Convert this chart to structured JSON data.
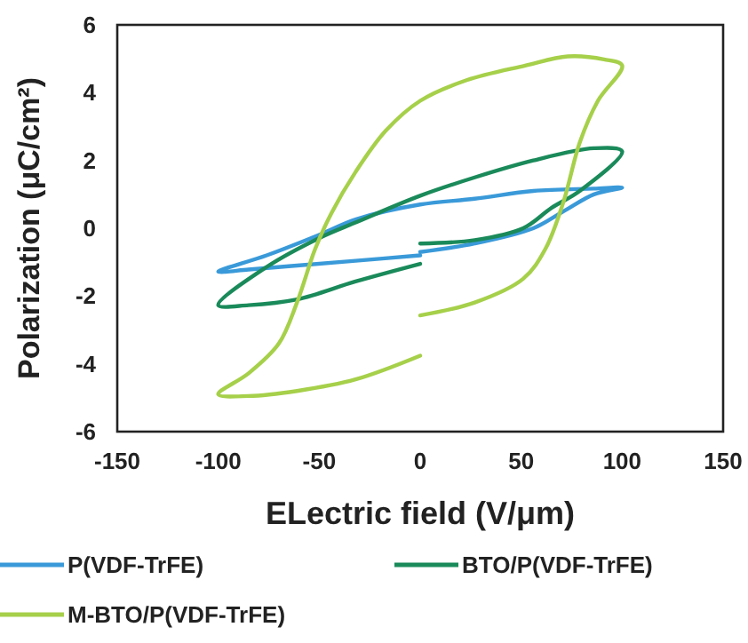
{
  "chart_data": {
    "type": "line",
    "xlabel": "ELectric field (V/μm)",
    "ylabel": "Polarization (μC/cm²)",
    "xlim": [
      -150,
      150
    ],
    "xticks": [
      -150,
      -100,
      -50,
      0,
      50,
      100,
      150
    ],
    "ylim": [
      -6,
      6
    ],
    "yticks": [
      -6,
      -4,
      -2,
      0,
      2,
      4,
      6
    ],
    "grid": false,
    "legend": "bottom",
    "marker": "none",
    "line_style": "solid",
    "series": [
      {
        "name": "P(VDF-TrFE)",
        "color": "#3a9ad9",
        "x": [
          0,
          27,
          56,
          71,
          86,
          100,
          86,
          56,
          27,
          0,
          -32,
          -49,
          -76,
          -100,
          -85,
          -61,
          -32,
          0
        ],
        "values": [
          -0.7,
          -0.45,
          0,
          0.5,
          1.0,
          1.2,
          1.17,
          1.1,
          0.87,
          0.7,
          0.26,
          -0.17,
          -0.8,
          -1.28,
          -1.22,
          -1.1,
          -0.96,
          -0.8
        ]
      },
      {
        "name": "BTO/P(VDF-TrFE)",
        "color": "#1a8a5a",
        "x": [
          0,
          27,
          51,
          65,
          79,
          100,
          86,
          56,
          27,
          0,
          -32,
          -49,
          -76,
          -100,
          -85,
          -61,
          -32,
          0
        ],
        "values": [
          -0.45,
          -0.35,
          0,
          0.6,
          1.1,
          2.27,
          2.36,
          2.0,
          1.5,
          0.96,
          0.17,
          -0.26,
          -1.14,
          -2.27,
          -2.27,
          -2.1,
          -1.57,
          -1.05
        ]
      },
      {
        "name": "M-BTO/P(VDF-TrFE)",
        "color": "#a6d04a",
        "x": [
          0,
          27,
          51,
          62,
          71,
          79,
          88,
          100,
          91,
          73,
          52,
          23,
          0,
          -17,
          -32,
          -44,
          -52,
          -61,
          -70,
          -85,
          -100,
          -85,
          -61,
          -32,
          0
        ],
        "values": [
          -2.57,
          -2.19,
          -1.49,
          -0.61,
          0.79,
          2.53,
          3.76,
          4.8,
          4.98,
          5.07,
          4.8,
          4.37,
          3.76,
          2.88,
          1.66,
          0.44,
          -0.61,
          -2.19,
          -3.4,
          -4.28,
          -4.9,
          -4.95,
          -4.8,
          -4.46,
          -3.76
        ]
      }
    ]
  }
}
